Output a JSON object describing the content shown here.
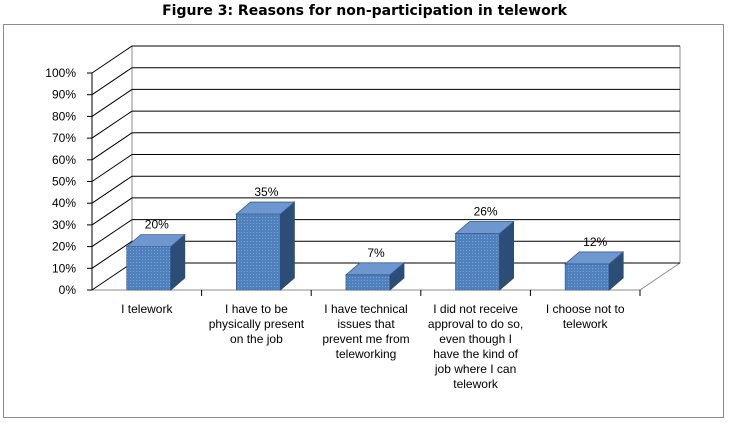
{
  "chart_data": {
    "type": "bar",
    "title": "Figure 3:  Reasons for non-participation in telework",
    "categories": [
      [
        "I telework"
      ],
      [
        "I have to be",
        "physically present",
        "on the job"
      ],
      [
        "I have technical",
        "issues that",
        "prevent me from",
        "teleworking"
      ],
      [
        "I did not receive",
        "approval to do so,",
        "even though I",
        "have the kind of",
        "job where I can",
        "telework"
      ],
      [
        "I choose not to",
        "telework"
      ]
    ],
    "values": [
      20,
      35,
      7,
      26,
      12
    ],
    "data_labels": [
      "20%",
      "35%",
      "7%",
      "26%",
      "12%"
    ],
    "yticks": [
      "0%",
      "10%",
      "20%",
      "30%",
      "40%",
      "50%",
      "60%",
      "70%",
      "80%",
      "90%",
      "100%"
    ],
    "ylim": [
      0,
      100
    ],
    "grid": true,
    "bar_color": "#4f81bd",
    "bar_side_color": "#2c4d75",
    "bar_top_color": "#6f97cf"
  }
}
